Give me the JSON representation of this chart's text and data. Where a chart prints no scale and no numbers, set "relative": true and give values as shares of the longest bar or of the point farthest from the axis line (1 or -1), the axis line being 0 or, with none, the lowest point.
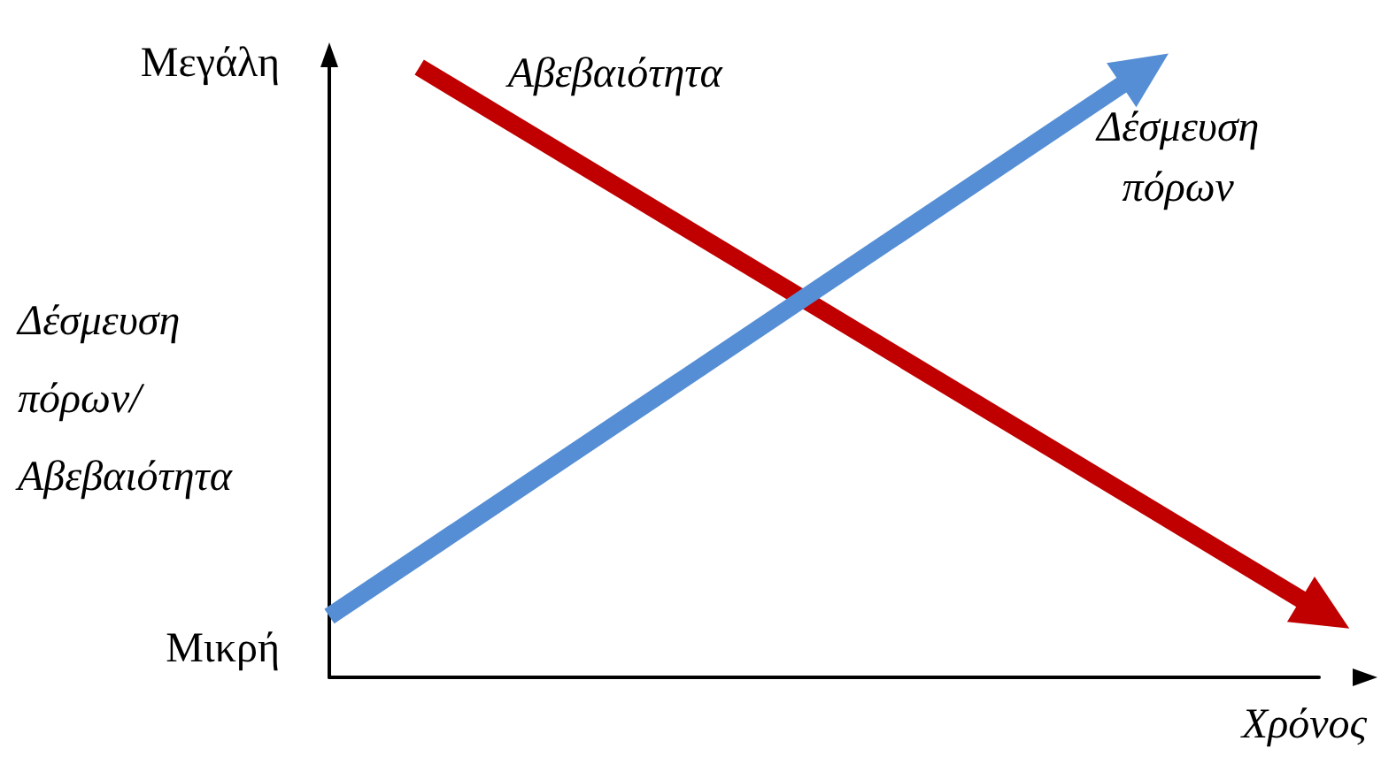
{
  "chart_data": {
    "type": "line",
    "relative": true,
    "ylabel": "Δέσμευση πόρων/ Αβεβαιότητα",
    "xlabel": "Χρόνος",
    "annotations": [
      "Μεγάλη",
      "Μικρή"
    ],
    "categories": [
      null,
      null,
      null,
      null,
      null,
      null,
      null,
      null,
      null,
      null,
      null,
      null
    ],
    "series": [
      {
        "name": "Αβεβαιότητα",
        "color": "#c00000",
        "values": [
          null,
          1,
          null,
          null,
          null,
          null,
          null,
          null,
          null,
          null,
          null,
          0.11
        ]
      },
      {
        "name": "Δέσμευση πόρων",
        "color": "#558ed5",
        "values": [
          0.1,
          null,
          null,
          null,
          null,
          null,
          null,
          null,
          null,
          0.99,
          null,
          null
        ]
      }
    ],
    "line_style": "solid",
    "grid": false,
    "legend": false
  }
}
